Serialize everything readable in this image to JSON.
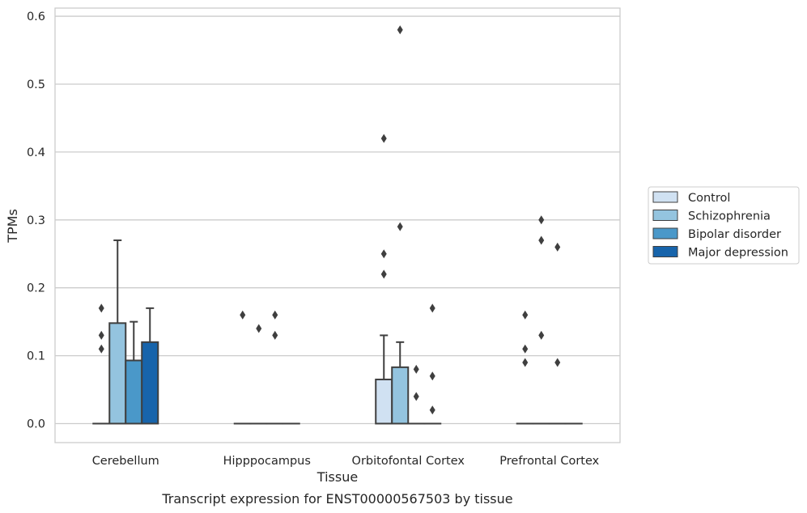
{
  "chart_data": {
    "type": "box",
    "title": "",
    "caption": "Transcript expression for ENST00000567503 by tissue",
    "xlabel": "Tissue",
    "ylabel": "TPMs",
    "ylim": [
      -0.028,
      0.612
    ],
    "yticks": [
      0.0,
      0.1,
      0.2,
      0.3,
      0.4,
      0.5,
      0.6
    ],
    "ytick_labels": [
      "0.0",
      "0.1",
      "0.2",
      "0.3",
      "0.4",
      "0.5",
      "0.6"
    ],
    "grid": "horizontal",
    "legend_position": "right",
    "categories": [
      "Cerebellum",
      "Hipppocampus",
      "Orbitofontal Cortex",
      "Prefrontal Cortex"
    ],
    "series": [
      {
        "name": "Control",
        "color": "#d0e1f2",
        "boxes": [
          {
            "q1": 0,
            "median": 0,
            "q3": 0,
            "whisker_low": 0,
            "whisker_high": 0,
            "outliers": [
              0.17,
              0.13,
              0.11
            ]
          },
          {
            "q1": 0,
            "median": 0,
            "q3": 0,
            "whisker_low": 0,
            "whisker_high": 0,
            "outliers": [
              0.16
            ]
          },
          {
            "q1": 0,
            "median": 0,
            "q3": 0.065,
            "whisker_low": 0,
            "whisker_high": 0.13,
            "outliers": [
              0.42,
              0.25,
              0.22
            ]
          },
          {
            "q1": 0,
            "median": 0,
            "q3": 0,
            "whisker_low": 0,
            "whisker_high": 0,
            "outliers": [
              0.16,
              0.11,
              0.09
            ]
          }
        ]
      },
      {
        "name": "Schizophrenia",
        "color": "#94c4df",
        "boxes": [
          {
            "q1": 0,
            "median": 0,
            "q3": 0.148,
            "whisker_low": 0,
            "whisker_high": 0.27,
            "outliers": []
          },
          {
            "q1": 0,
            "median": 0,
            "q3": 0,
            "whisker_low": 0,
            "whisker_high": 0,
            "outliers": [
              0.14
            ]
          },
          {
            "q1": 0,
            "median": 0,
            "q3": 0.083,
            "whisker_low": 0,
            "whisker_high": 0.12,
            "outliers": [
              0.58,
              0.29
            ]
          },
          {
            "q1": 0,
            "median": 0,
            "q3": 0,
            "whisker_low": 0,
            "whisker_high": 0,
            "outliers": [
              0.3,
              0.27,
              0.13
            ]
          }
        ]
      },
      {
        "name": "Bipolar disorder",
        "color": "#4a98c9",
        "boxes": [
          {
            "q1": 0,
            "median": 0,
            "q3": 0.093,
            "whisker_low": 0,
            "whisker_high": 0.15,
            "outliers": []
          },
          {
            "q1": 0,
            "median": 0,
            "q3": 0,
            "whisker_low": 0,
            "whisker_high": 0,
            "outliers": [
              0.16,
              0.13
            ]
          },
          {
            "q1": 0,
            "median": 0,
            "q3": 0,
            "whisker_low": 0,
            "whisker_high": 0,
            "outliers": [
              0.08,
              0.04
            ]
          },
          {
            "q1": 0,
            "median": 0,
            "q3": 0,
            "whisker_low": 0,
            "whisker_high": 0,
            "outliers": [
              0.26,
              0.09
            ]
          }
        ]
      },
      {
        "name": "Major depression",
        "color": "#1764ab",
        "boxes": [
          {
            "q1": 0,
            "median": 0,
            "q3": 0.12,
            "whisker_low": 0,
            "whisker_high": 0.17,
            "outliers": []
          },
          {
            "q1": 0,
            "median": 0,
            "q3": 0,
            "whisker_low": 0,
            "whisker_high": 0,
            "outliers": []
          },
          {
            "q1": 0,
            "median": 0,
            "q3": 0,
            "whisker_low": 0,
            "whisker_high": 0,
            "outliers": [
              0.17,
              0.07,
              0.02
            ]
          },
          {
            "q1": 0,
            "median": 0,
            "q3": 0,
            "whisker_low": 0,
            "whisker_high": 0,
            "outliers": []
          }
        ]
      }
    ]
  }
}
